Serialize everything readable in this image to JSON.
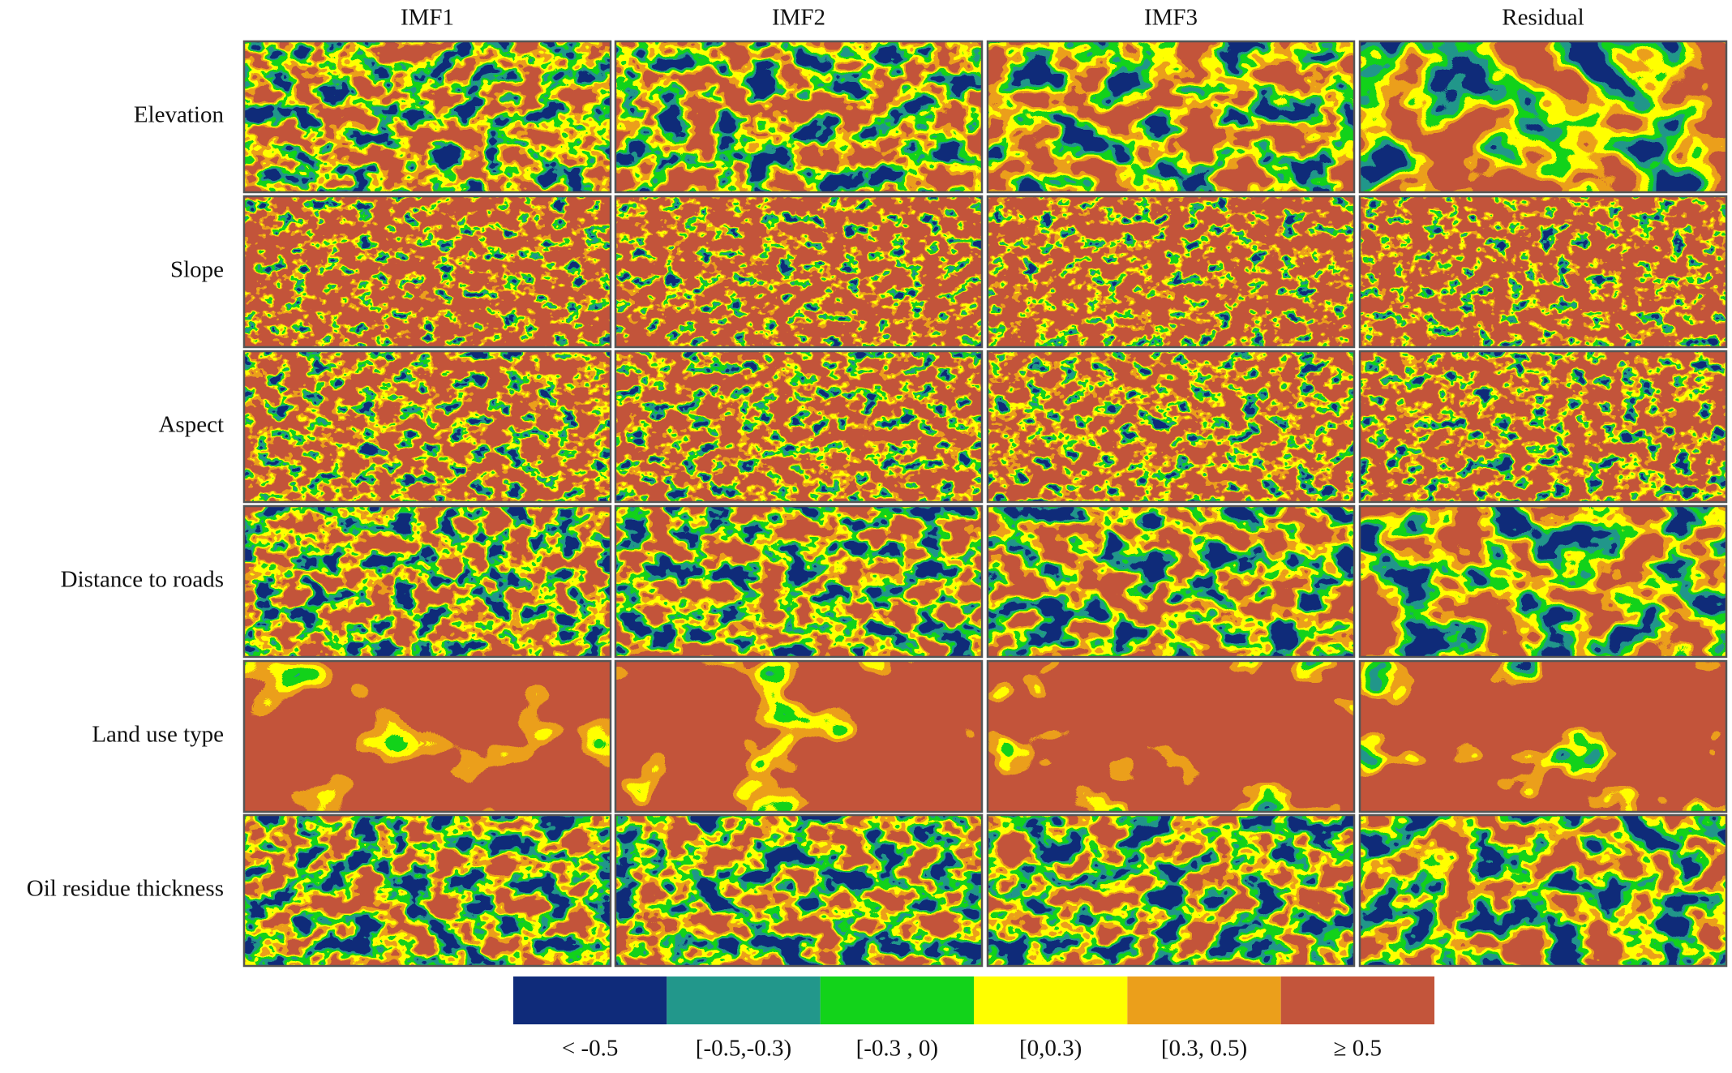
{
  "columns": [
    "IMF1",
    "IMF2",
    "IMF3",
    "Residual"
  ],
  "rows": [
    "Elevation",
    "Slope",
    "Aspect",
    "Distance to roads",
    "Land use type",
    "Oil residue thickness"
  ],
  "legend": [
    {
      "label": "< -0.5",
      "color": "#0f2b7a"
    },
    {
      "label": "[-0.5,-0.3)",
      "color": "#22978b"
    },
    {
      "label": "[-0.3 , 0)",
      "color": "#12d31a"
    },
    {
      "label": "[0,0.3)",
      "color": "#ffff00"
    },
    {
      "label": "[0.3, 0.5)",
      "color": "#eb9f1b"
    },
    {
      "label": "≥ 0.5",
      "color": "#c3553b"
    }
  ]
}
